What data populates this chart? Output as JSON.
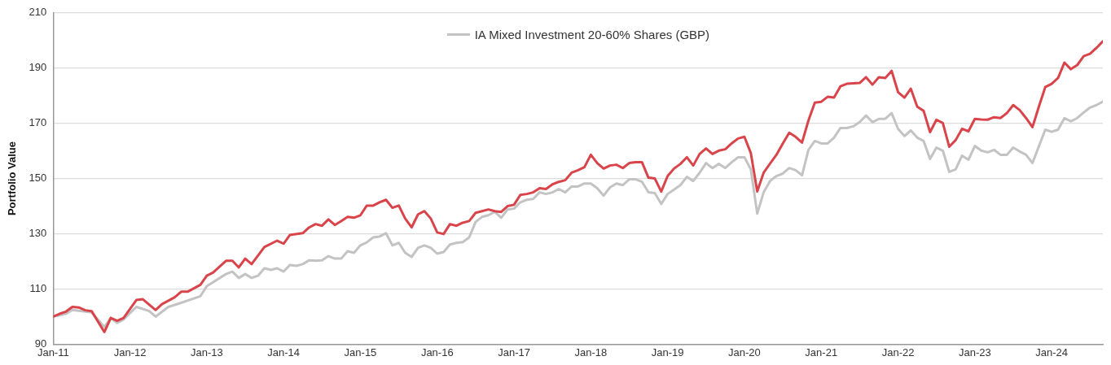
{
  "chart_data": {
    "type": "line",
    "ylabel": "Portfolio Value",
    "xlim": [
      "2011-01",
      "2024-09"
    ],
    "ylim": [
      90,
      210
    ],
    "yticks": [
      90,
      110,
      130,
      150,
      170,
      190,
      210
    ],
    "xticks": [
      {
        "value": "2011-01",
        "label": "Jan-11"
      },
      {
        "value": "2012-01",
        "label": "Jan-12"
      },
      {
        "value": "2013-01",
        "label": "Jan-13"
      },
      {
        "value": "2014-01",
        "label": "Jan-14"
      },
      {
        "value": "2015-01",
        "label": "Jan-15"
      },
      {
        "value": "2016-01",
        "label": "Jan-16"
      },
      {
        "value": "2017-01",
        "label": "Jan-17"
      },
      {
        "value": "2018-01",
        "label": "Jan-18"
      },
      {
        "value": "2019-01",
        "label": "Jan-19"
      },
      {
        "value": "2020-01",
        "label": "Jan-20"
      },
      {
        "value": "2021-01",
        "label": "Jan-21"
      },
      {
        "value": "2022-01",
        "label": "Jan-22"
      },
      {
        "value": "2023-01",
        "label": "Jan-23"
      },
      {
        "value": "2024-01",
        "label": "Jan-24"
      }
    ],
    "grid": "y",
    "legend": "top",
    "marker": "none",
    "line_style": "solid",
    "series": [
      {
        "color": "#d9444b",
        "x": [
          "2011-01",
          "2011-02",
          "2011-03",
          "2011-04",
          "2011-05",
          "2011-06",
          "2011-07",
          "2011-09",
          "2011-10",
          "2011-11",
          "2011-12",
          "2012-02",
          "2012-03",
          "2012-05",
          "2012-06",
          "2012-08",
          "2012-09",
          "2012-10",
          "2012-12",
          "2013-01",
          "2013-02",
          "2013-04",
          "2013-05",
          "2013-06",
          "2013-07",
          "2013-08",
          "2013-10",
          "2013-12",
          "2014-01",
          "2014-02",
          "2014-04",
          "2014-05",
          "2014-06",
          "2014-07",
          "2014-08",
          "2014-09",
          "2014-10",
          "2014-11",
          "2014-12",
          "2015-01",
          "2015-02",
          "2015-03",
          "2015-04",
          "2015-05",
          "2015-06",
          "2015-07",
          "2015-08",
          "2015-09",
          "2015-10",
          "2015-11",
          "2015-12",
          "2016-01",
          "2016-02",
          "2016-03",
          "2016-04",
          "2016-05",
          "2016-06",
          "2016-07",
          "2016-08",
          "2016-09",
          "2016-10",
          "2016-11",
          "2016-12",
          "2017-01",
          "2017-02",
          "2017-03",
          "2017-04",
          "2017-05",
          "2017-06",
          "2017-07",
          "2017-08",
          "2017-09",
          "2017-10",
          "2017-11",
          "2017-12",
          "2018-01",
          "2018-02",
          "2018-03",
          "2018-04",
          "2018-05",
          "2018-06",
          "2018-07",
          "2018-08",
          "2018-09",
          "2018-10",
          "2018-11",
          "2018-12",
          "2019-01",
          "2019-02",
          "2019-03",
          "2019-04",
          "2019-05",
          "2019-06",
          "2019-07",
          "2019-08",
          "2019-09",
          "2019-10",
          "2019-11",
          "2019-12",
          "2020-01",
          "2020-02",
          "2020-03",
          "2020-04",
          "2020-05",
          "2020-06",
          "2020-07",
          "2020-08",
          "2020-09",
          "2020-10",
          "2020-11",
          "2020-12",
          "2021-01",
          "2021-02",
          "2021-03",
          "2021-04",
          "2021-05",
          "2021-06",
          "2021-07",
          "2021-08",
          "2021-09",
          "2021-10",
          "2021-11",
          "2021-12",
          "2022-01",
          "2022-02",
          "2022-03",
          "2022-04",
          "2022-05",
          "2022-06",
          "2022-07",
          "2022-08",
          "2022-09",
          "2022-10",
          "2022-11",
          "2022-12",
          "2023-01",
          "2023-02",
          "2023-03",
          "2023-04",
          "2023-05",
          "2023-06",
          "2023-07",
          "2023-08",
          "2023-09",
          "2023-10",
          "2023-11",
          "2023-12",
          "2024-01",
          "2024-02",
          "2024-03",
          "2024-04",
          "2024-05",
          "2024-06",
          "2024-07",
          "2024-08",
          "2024-09"
        ],
        "values": [
          100,
          101,
          101.8,
          103.5,
          103.3,
          102.3,
          102,
          94.4,
          99.5,
          98.5,
          99.5,
          106,
          106.3,
          102.4,
          104.5,
          107,
          109,
          109,
          111.5,
          114.8,
          116,
          120.2,
          120.2,
          117.8,
          121,
          119,
          125.2,
          127.5,
          126.4,
          129.6,
          130.2,
          132.3,
          133.5,
          132.9,
          135.2,
          133.2,
          134.6,
          136.1,
          135.8,
          136.7,
          140.2,
          140.2,
          141.4,
          142.3,
          139.4,
          140.2,
          135.5,
          132.3,
          137,
          138.2,
          135.5,
          130.5,
          129.9,
          133.5,
          132.9,
          134,
          134.6,
          137.6,
          138.2,
          138.8,
          138.2,
          137.9,
          140,
          140.5,
          144.1,
          144.4,
          145,
          146.5,
          146.2,
          147.9,
          148.8,
          149.4,
          152.1,
          153,
          154.1,
          158.6,
          155.6,
          153.6,
          154.7,
          155,
          153.8,
          155.6,
          155.9,
          155.9,
          150.3,
          150,
          145.3,
          150.9,
          153.6,
          155.3,
          157.7,
          154.7,
          158.9,
          160.9,
          158.9,
          160.1,
          160.6,
          162.7,
          164.5,
          165.1,
          159.2,
          145.3,
          152.1,
          155.4,
          158.6,
          162.7,
          166.6,
          165.1,
          163,
          171,
          177.5,
          177.8,
          179.6,
          179.3,
          183.4,
          184.3,
          184.5,
          184.6,
          186.7,
          184,
          186.7,
          186.4,
          189,
          181.3,
          179.3,
          182.5,
          176,
          174.5,
          166.8,
          171.3,
          170.1,
          161.5,
          163.9,
          168,
          167.1,
          171.6,
          171.4,
          171.3,
          172.2,
          171.9,
          173.7,
          176.6,
          174.8,
          171.9,
          168.6,
          176,
          183.1,
          184.3,
          186.4,
          192,
          189.6,
          191.1,
          194.3,
          195.2,
          197.3,
          199.7
        ]
      },
      {
        "name": "IA Mixed Investment 20-60% Shares (GBP)",
        "color": "#c3c3c3",
        "x": [
          "2011-01",
          "2011-03",
          "2011-04",
          "2011-07",
          "2011-09",
          "2011-10",
          "2011-11",
          "2011-12",
          "2012-02",
          "2012-04",
          "2012-05",
          "2012-07",
          "2012-09",
          "2012-12",
          "2013-01",
          "2013-04",
          "2013-05",
          "2013-06",
          "2013-07",
          "2013-08",
          "2013-09",
          "2013-10",
          "2013-11",
          "2013-12",
          "2014-01",
          "2014-02",
          "2014-03",
          "2014-04",
          "2014-05",
          "2014-06",
          "2014-07",
          "2014-08",
          "2014-09",
          "2014-10",
          "2014-11",
          "2014-12",
          "2015-01",
          "2015-02",
          "2015-03",
          "2015-04",
          "2015-05",
          "2015-06",
          "2015-07",
          "2015-08",
          "2015-09",
          "2015-10",
          "2015-11",
          "2015-12",
          "2016-01",
          "2016-02",
          "2016-03",
          "2016-04",
          "2016-05",
          "2016-06",
          "2016-07",
          "2016-08",
          "2016-09",
          "2016-10",
          "2016-11",
          "2016-12",
          "2017-01",
          "2017-02",
          "2017-03",
          "2017-04",
          "2017-05",
          "2017-06",
          "2017-07",
          "2017-08",
          "2017-09",
          "2017-10",
          "2017-11",
          "2017-12",
          "2018-01",
          "2018-02",
          "2018-03",
          "2018-04",
          "2018-05",
          "2018-06",
          "2018-07",
          "2018-08",
          "2018-09",
          "2018-10",
          "2018-11",
          "2018-12",
          "2019-01",
          "2019-02",
          "2019-03",
          "2019-04",
          "2019-05",
          "2019-06",
          "2019-07",
          "2019-08",
          "2019-09",
          "2019-10",
          "2019-11",
          "2019-12",
          "2020-01",
          "2020-02",
          "2020-03",
          "2020-04",
          "2020-05",
          "2020-06",
          "2020-07",
          "2020-08",
          "2020-09",
          "2020-10",
          "2020-11",
          "2020-12",
          "2021-01",
          "2021-02",
          "2021-03",
          "2021-04",
          "2021-05",
          "2021-06",
          "2021-07",
          "2021-08",
          "2021-09",
          "2021-10",
          "2021-11",
          "2021-12",
          "2022-01",
          "2022-02",
          "2022-03",
          "2022-04",
          "2022-05",
          "2022-06",
          "2022-07",
          "2022-08",
          "2022-09",
          "2022-10",
          "2022-11",
          "2022-12",
          "2023-01",
          "2023-02",
          "2023-03",
          "2023-04",
          "2023-05",
          "2023-06",
          "2023-07",
          "2023-08",
          "2023-09",
          "2023-10",
          "2023-12",
          "2024-01",
          "2024-02",
          "2024-03",
          "2024-04",
          "2024-05",
          "2024-06",
          "2024-07",
          "2024-08",
          "2024-09"
        ],
        "values": [
          100,
          101,
          102.4,
          101.5,
          96.2,
          99.5,
          97.7,
          99,
          103.5,
          102,
          100,
          103.5,
          105,
          107.4,
          111,
          115.4,
          116.3,
          114,
          115.4,
          114,
          114.8,
          117.5,
          116.9,
          117.5,
          116.3,
          118.7,
          118.4,
          119,
          120.4,
          120.2,
          120.4,
          121.9,
          121,
          121,
          123.7,
          123.1,
          125.8,
          126.9,
          128.7,
          129,
          130.2,
          125.8,
          126.7,
          123.1,
          121.6,
          124.9,
          125.8,
          124.9,
          122.8,
          123.4,
          126.1,
          126.7,
          127,
          128.7,
          134.3,
          136.1,
          136.7,
          137.9,
          135.8,
          138.8,
          139.1,
          141.4,
          142.3,
          142.6,
          145,
          144.4,
          145,
          146.2,
          145,
          147.1,
          147.1,
          148.2,
          148.2,
          146.5,
          143.8,
          146.8,
          148.2,
          147.6,
          149.7,
          149.7,
          148.8,
          145,
          144.7,
          140.8,
          144.4,
          146,
          147.6,
          150.6,
          149.1,
          152.1,
          155.6,
          153.8,
          155.3,
          153.8,
          155.9,
          157.7,
          157.7,
          153.3,
          137.3,
          145,
          149.1,
          150.9,
          151.8,
          153.8,
          153,
          151.2,
          160.4,
          163.6,
          162.7,
          162.7,
          164.8,
          168.3,
          168.3,
          168.9,
          170.4,
          172.8,
          170.4,
          171.6,
          171.6,
          173.7,
          168,
          165.4,
          167.4,
          164.8,
          163.6,
          157.1,
          161.2,
          160.1,
          152.4,
          153.3,
          158.3,
          156.8,
          161.8,
          160.1,
          159.5,
          160.4,
          158.6,
          158.6,
          161.2,
          159.8,
          158.6,
          155.6,
          167.7,
          166.9,
          167.7,
          171.9,
          170.7,
          171.9,
          173.9,
          175.7,
          176.6,
          177.8
        ]
      }
    ]
  }
}
